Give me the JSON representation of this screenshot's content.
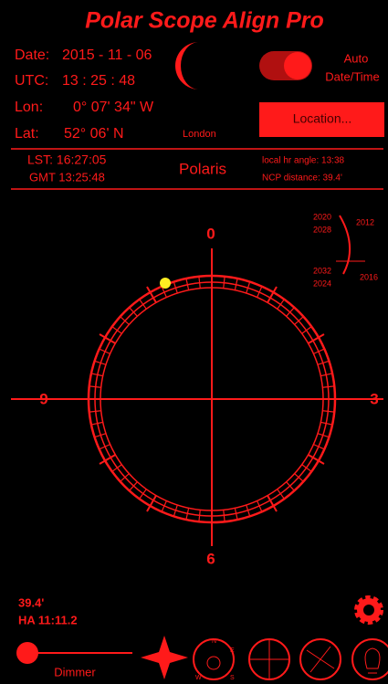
{
  "header": {
    "title": "Polar Scope Align Pro"
  },
  "info": {
    "date_label": "Date:",
    "date": "2015 - 11 - 06",
    "utc_label": "UTC:",
    "utc": "13 : 25 : 48",
    "lon_label": "Lon:",
    "lon": "0° 07' 34\" W",
    "lat_label": "Lat:",
    "lat": "52° 06' N",
    "city": "London"
  },
  "controls": {
    "auto_line1": "Auto",
    "auto_line2": "Date/Time",
    "location_button": "Location..."
  },
  "status": {
    "lst": "LST: 16:27:05",
    "gmt": "GMT 13:25:48",
    "star": "Polaris",
    "hour_angle": "local hr angle: 13:38",
    "ncp_distance": "NCP distance: 39.4'"
  },
  "reticle": {
    "top": "0",
    "left": "9",
    "right": "3",
    "bottom": "6"
  },
  "years": [
    "2020",
    "2028",
    "2032",
    "2024",
    "2012",
    "2016"
  ],
  "readout": {
    "distance": "39.4'",
    "hour_angle": "HA 11:11.2"
  },
  "dimmer": "Dimmer",
  "compass": [
    "N",
    "E",
    "S",
    "W"
  ]
}
